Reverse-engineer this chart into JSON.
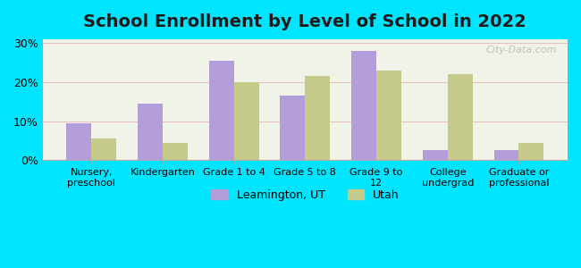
{
  "title": "School Enrollment by Level of School in 2022",
  "categories": [
    "Nursery,\npreschool",
    "Kindergarten",
    "Grade 1 to 4",
    "Grade 5 to 8",
    "Grade 9 to\n12",
    "College\nundergrad",
    "Graduate or\nprofessional"
  ],
  "leamington": [
    9.5,
    14.5,
    25.5,
    16.5,
    28.0,
    2.5,
    2.5
  ],
  "utah": [
    5.5,
    4.5,
    20.0,
    21.5,
    23.0,
    22.0,
    4.5
  ],
  "leamington_color": "#b39ddb",
  "utah_color": "#c5c98a",
  "background_outer": "#00e5ff",
  "background_inner_top": "#f0f4e8",
  "background_inner_bottom": "#e8f5e9",
  "grid_color": "#e8c0c0",
  "yticks": [
    0,
    10,
    20,
    30
  ],
  "ylim": [
    0,
    31
  ],
  "legend_leamington": "Leamington, UT",
  "legend_utah": "Utah",
  "title_fontsize": 14,
  "bar_width": 0.35
}
